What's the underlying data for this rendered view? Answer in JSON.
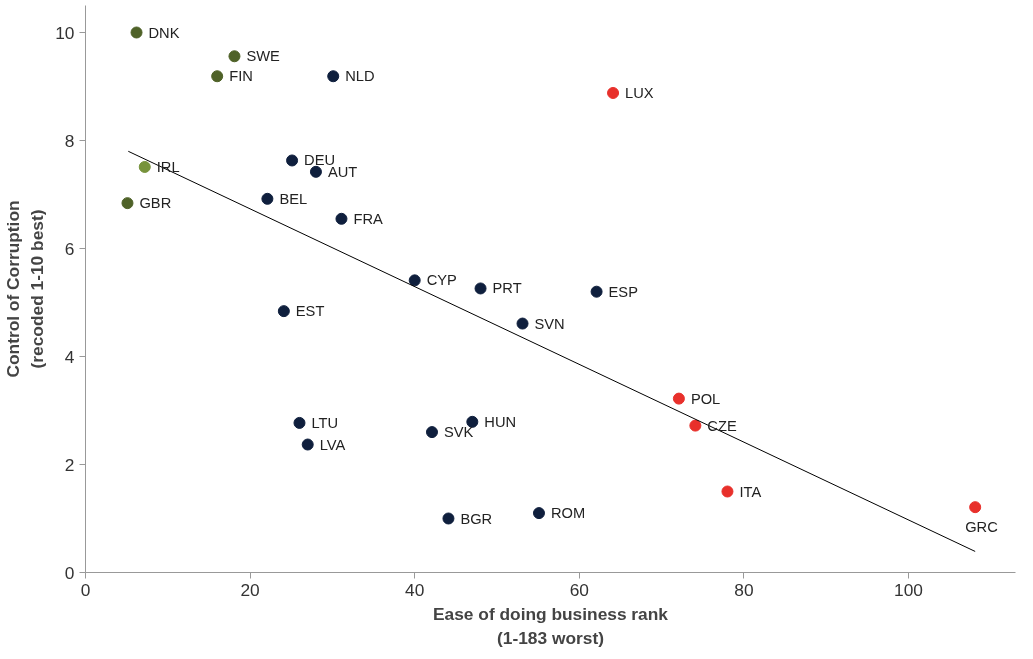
{
  "chart_data": {
    "type": "scatter",
    "xlabel": "Ease of doing business rank\n(1-183 worst)",
    "ylabel": "Control of Corruption\n(recoded 1-10 best)",
    "xlim": [
      0,
      113
    ],
    "ylim": [
      0,
      10.5
    ],
    "xticks": [
      0,
      20,
      40,
      60,
      80,
      100
    ],
    "yticks": [
      0,
      2,
      4,
      6,
      8,
      10
    ],
    "grid": false,
    "marker": "circle",
    "series": [
      {
        "x": [
          6.2,
          18.1,
          16.0,
          30.1,
          64.1,
          7.2,
          5.1,
          25.1,
          28.0,
          22.1,
          31.1,
          40.0,
          48.0,
          62.1,
          24.1,
          53.1,
          72.1,
          74.1,
          26.0,
          47.0,
          42.1,
          27.0,
          78.0,
          108.1,
          44.1,
          55.1
        ],
        "values": [
          10.0,
          9.56,
          9.19,
          9.19,
          8.88,
          7.51,
          6.84,
          7.63,
          7.42,
          6.92,
          6.55,
          5.41,
          5.26,
          5.2,
          4.84,
          4.61,
          3.22,
          2.72,
          2.77,
          2.79,
          2.6,
          2.37,
          1.5,
          1.21,
          1.0,
          1.1
        ],
        "colors": [
          "#4f6228",
          "#4f6228",
          "#4f6228",
          "#0f1f3d",
          "#e8302b",
          "#77933c",
          "#4f6228",
          "#0f1f3d",
          "#0f1f3d",
          "#0f1f3d",
          "#0f1f3d",
          "#0f1f3d",
          "#0f1f3d",
          "#0f1f3d",
          "#0f1f3d",
          "#0f1f3d",
          "#e8302b",
          "#e8302b",
          "#0f1f3d",
          "#0f1f3d",
          "#0f1f3d",
          "#0f1f3d",
          "#e8302b",
          "#e8302b",
          "#0f1f3d",
          "#0f1f3d"
        ]
      },
      {
        "type": "line",
        "marker": "none",
        "color": "#000000",
        "x": [
          5.2,
          108.1
        ],
        "values": [
          7.8,
          0.39
        ]
      }
    ],
    "annotations": [
      {
        "text": "DNK",
        "x": 6.2,
        "y": 10.0
      },
      {
        "text": "SWE",
        "x": 18.1,
        "y": 9.56
      },
      {
        "text": "FIN",
        "x": 16.0,
        "y": 9.19
      },
      {
        "text": "NLD",
        "x": 30.1,
        "y": 9.19
      },
      {
        "text": "LUX",
        "x": 64.1,
        "y": 8.88
      },
      {
        "text": "IRL",
        "x": 7.2,
        "y": 7.51
      },
      {
        "text": "GBR",
        "x": 5.1,
        "y": 6.84
      },
      {
        "text": "DEU",
        "x": 25.1,
        "y": 7.63
      },
      {
        "text": "AUT",
        "x": 28.0,
        "y": 7.42
      },
      {
        "text": "BEL",
        "x": 22.1,
        "y": 6.92
      },
      {
        "text": "FRA",
        "x": 31.1,
        "y": 6.55
      },
      {
        "text": "CYP",
        "x": 40.0,
        "y": 5.41
      },
      {
        "text": "PRT",
        "x": 48.0,
        "y": 5.26
      },
      {
        "text": "ESP",
        "x": 62.1,
        "y": 5.2
      },
      {
        "text": "EST",
        "x": 24.1,
        "y": 4.84
      },
      {
        "text": "SVN",
        "x": 53.1,
        "y": 4.61
      },
      {
        "text": "POL",
        "x": 72.1,
        "y": 3.22
      },
      {
        "text": "CZE",
        "x": 74.1,
        "y": 2.72
      },
      {
        "text": "LTU",
        "x": 26.0,
        "y": 2.77
      },
      {
        "text": "HUN",
        "x": 47.0,
        "y": 2.79
      },
      {
        "text": "SVK",
        "x": 42.1,
        "y": 2.6
      },
      {
        "text": "LVA",
        "x": 27.0,
        "y": 2.37
      },
      {
        "text": "ITA",
        "x": 78.0,
        "y": 1.5
      },
      {
        "text": "GRC",
        "x": 108.1,
        "y": 1.21
      },
      {
        "text": "BGR",
        "x": 44.1,
        "y": 1.0
      },
      {
        "text": "ROM",
        "x": 55.1,
        "y": 1.1
      }
    ]
  }
}
